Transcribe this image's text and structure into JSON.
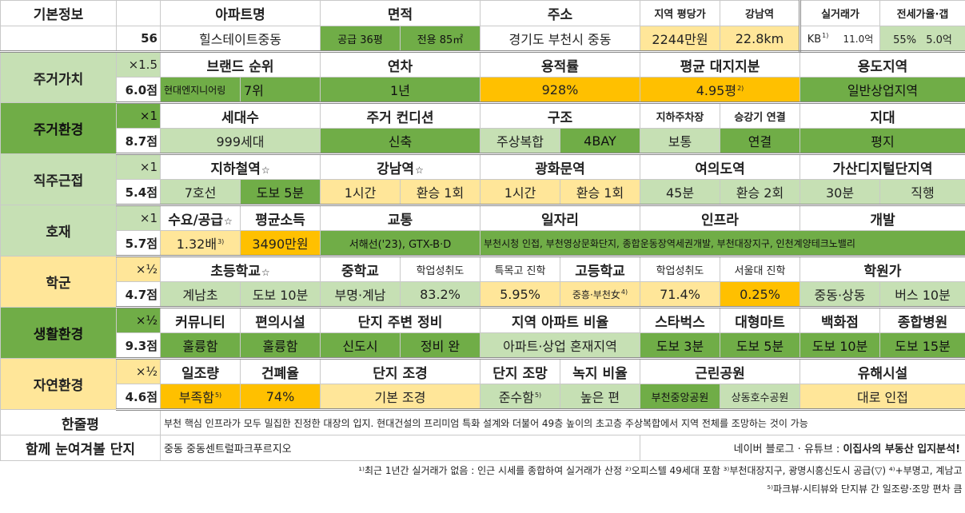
{
  "basic": {
    "title": "기본정보",
    "number": "56",
    "headers": {
      "apt": "아파트명",
      "area": "면적",
      "addr": "주소",
      "pyeong_price": "지역 평당가",
      "gangnam": "강남역",
      "real_price": "실거래가",
      "jeonse": "전세가율·갭"
    },
    "apt_name": "힐스테이트중동",
    "area_supply": "공급 36평",
    "area_net": "전용 85㎡",
    "address": "경기도 부천시 중동",
    "region_price": "2244만원",
    "gangnam_dist": "22.8km",
    "real_kb": "KB",
    "real_kb_note": "1)",
    "real_value": "11.0억",
    "jeonse_rate": "55%",
    "gap": "5.0억"
  },
  "living_value": {
    "title": "주거가치",
    "weight": "×1.5",
    "score": "6.0점",
    "headers": [
      "브랜드 순위",
      "연차",
      "용적률",
      "평균 대지지분",
      "용도지역"
    ],
    "brand": "현대엔지니어링",
    "brand_rank": "7위",
    "age": "1년",
    "far": "928%",
    "land_share": "4.95평",
    "land_note": "2)",
    "zone": "일반상업지역"
  },
  "living_env": {
    "title": "주거환경",
    "weight": "×1",
    "score": "8.7점",
    "headers": [
      "세대수",
      "주거 컨디션",
      "구조",
      "지하주차장",
      "승강기 연결",
      "지대"
    ],
    "households": "999세대",
    "condition": "신축",
    "structure": "주상복합",
    "bay": "4BAY",
    "parking": "보통",
    "elevator": "연결",
    "terrain": "평지"
  },
  "commute": {
    "title": "직주근접",
    "weight": "×1",
    "score": "5.4점",
    "headers": [
      "지하철역",
      "강남역",
      "광화문역",
      "여의도역",
      "가산디지털단지역"
    ],
    "star": "☆",
    "subway_line": "7호선",
    "subway_walk": "도보 5분",
    "gangnam_time": "1시간",
    "gangnam_transfer": "환승 1회",
    "gwanghwamun_time": "1시간",
    "gwanghwamun_transfer": "환승 1회",
    "yeouido_time": "45분",
    "yeouido_transfer": "환승 2회",
    "gasan_time": "30분",
    "gasan_transfer": "직행"
  },
  "development": {
    "title": "호재",
    "weight": "×1",
    "score": "5.7점",
    "headers": [
      "수요/공급",
      "평균소득",
      "교통",
      "일자리",
      "인프라",
      "개발"
    ],
    "supply_demand": "1.32배",
    "supply_note": "3)",
    "income": "3490만원",
    "transport": "서해선('23), GTX-B·D",
    "jobs_infra_dev": "부천시청 인접, 부천영상문화단지, 종합운동장역세권개발, 부천대장지구, 인천계양테크노밸리"
  },
  "school": {
    "title": "학군",
    "weight": "×½",
    "score": "4.7점",
    "headers": [
      "초등학교",
      "중학교",
      "학업성취도",
      "특목고 진학",
      "고등학교",
      "학업성취도",
      "서울대 진학",
      "학원가"
    ],
    "elementary": "계남초",
    "elementary_walk": "도보 10분",
    "middle": "부명·계남",
    "middle_score": "83.2%",
    "special_rate": "5.95%",
    "high": "중흥·부천女",
    "high_note": "4)",
    "high_score": "71.4%",
    "snu_rate": "0.25%",
    "academy_area": "중동·상동",
    "academy_time": "버스 10분"
  },
  "life_env": {
    "title": "생활환경",
    "weight": "×½",
    "score": "9.3점",
    "headers": [
      "커뮤니티",
      "편의시설",
      "단지 주변 정비",
      "지역 아파트 비율",
      "스타벅스",
      "대형마트",
      "백화점",
      "종합병원"
    ],
    "community": "훌륭함",
    "facilities": "훌륭함",
    "surround_area": "신도시",
    "surround_state": "정비 완",
    "apt_ratio": "아파트·상업 혼재지역",
    "starbucks": "도보 3분",
    "mart": "도보 5분",
    "dept_store": "도보 10분",
    "hospital": "도보 15분"
  },
  "nature_env": {
    "title": "자연환경",
    "weight": "×½",
    "score": "4.6점",
    "headers": [
      "일조량",
      "건폐율",
      "단지 조경",
      "단지 조망",
      "녹지 비율",
      "근린공원",
      "유해시설"
    ],
    "sunlight": "부족함",
    "sunlight_note": "5)",
    "coverage": "74%",
    "landscape": "기본 조경",
    "view": "준수함",
    "view_note": "5)",
    "green_ratio": "높은 편",
    "park1": "부천중앙공원",
    "park2": "상동호수공원",
    "hazard": "대로 인접"
  },
  "summary": {
    "title": "한줄평",
    "text": "부천 핵심 인프라가 모두 밀집한 진정한 대장의 입지. 현대건설의 프리미엄 특화 설계와 더불어 49층 높이의 초고층 주상복합에서 지역 전체를 조망하는 것이 가능"
  },
  "related": {
    "title": "함께 눈여겨볼 단지",
    "complex": "중동 중동센트럴파크푸르지오",
    "source_prefix": "네이버 블로그 · 유튜브 :",
    "source_name": "이집사의 부동산 입지분석!"
  },
  "footnotes": {
    "line1": "¹⁾최근 1년간 실거래가 없음 : 인근 시세를 종합하여 실거래가 산정 ²⁾오피스텔 49세대 포함 ³⁾부천대장지구, 광명시흥신도시 공급(▽) ⁴⁾+부명고, 계남고",
    "line2": "⁵⁾파크뷰·시티뷰와 단지뷰 간 일조량·조망 편차 큼"
  },
  "colors": {
    "light_green": "#c6e0b4",
    "green": "#70ad47",
    "light_yellow": "#ffe699",
    "orange": "#ffc000"
  }
}
